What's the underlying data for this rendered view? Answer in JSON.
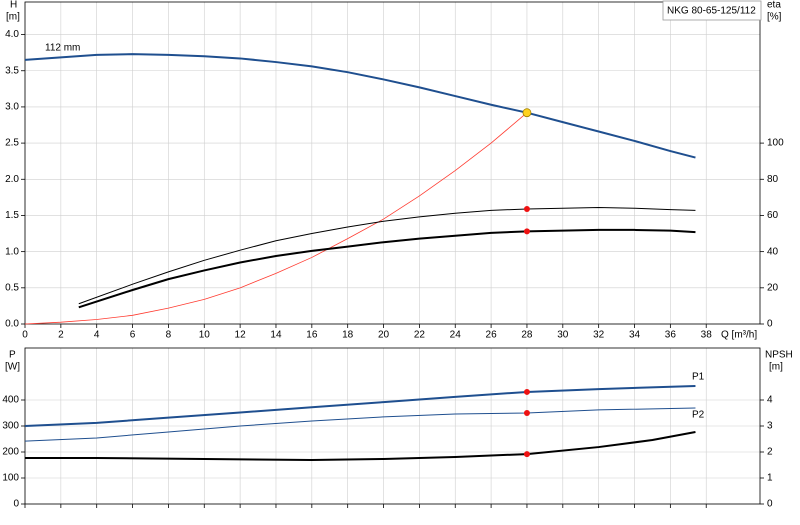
{
  "chart_data": [
    {
      "type": "line",
      "title": "NKG 80-65-125/112",
      "y_label": "H",
      "y_unit": "[m]",
      "y2_label": "eta",
      "y2_unit": "[%]",
      "x_label": "Q [m³/h]",
      "xlim": [
        0,
        41
      ],
      "ylim": [
        0,
        4.45
      ],
      "y2lim": [
        0,
        178
      ],
      "xticks": [
        0,
        2,
        4,
        6,
        8,
        10,
        12,
        14,
        16,
        18,
        20,
        22,
        24,
        26,
        28,
        30,
        32,
        34,
        36,
        38
      ],
      "yticks": [
        {
          "value": 0,
          "label": "0.0"
        },
        0.5,
        {
          "value": 1,
          "label": "1.0"
        },
        1.5,
        {
          "value": 2,
          "label": "2.0"
        },
        2.5,
        {
          "value": 3,
          "label": "3.0"
        },
        3.5,
        {
          "value": 4,
          "label": "4.0"
        }
      ],
      "y2ticks": [
        0,
        20,
        40,
        60,
        80,
        100
      ],
      "grid": true,
      "show_xtick_labels": true,
      "series": [
        {
          "name": "112 mm",
          "color": "#1f4f8f",
          "width": 2,
          "axis": "y",
          "x": [
            0,
            4,
            6,
            8,
            10,
            12,
            14,
            16,
            18,
            20,
            22,
            24,
            26,
            28,
            30,
            32,
            34,
            36,
            37.4
          ],
          "values": [
            3.65,
            3.72,
            3.73,
            3.72,
            3.7,
            3.67,
            3.62,
            3.56,
            3.48,
            3.38,
            3.27,
            3.15,
            3.03,
            2.92,
            2.79,
            2.66,
            2.53,
            2.39,
            2.3
          ]
        },
        {
          "color": "#ff3b30",
          "width": 0.8,
          "axis": "y2",
          "x": [
            0,
            2,
            4,
            6,
            8,
            10,
            12,
            14,
            16,
            18,
            20,
            22,
            24,
            26,
            28
          ],
          "values": [
            0,
            1,
            2.5,
            4.8,
            8.8,
            13.6,
            20,
            28,
            36.8,
            47.2,
            58,
            70.8,
            84.8,
            100,
            116.8
          ]
        },
        {
          "color": "#000000",
          "width": 1,
          "axis": "y2",
          "x": [
            3,
            6,
            8,
            10,
            12,
            14,
            16,
            18,
            20,
            22,
            24,
            26,
            28,
            30,
            32,
            34,
            36,
            37.4
          ],
          "values": [
            11.2,
            22,
            28.8,
            35.2,
            40.8,
            46,
            50,
            53.6,
            56.8,
            59.2,
            61.2,
            62.8,
            63.6,
            64,
            64.4,
            64,
            63.2,
            62.8
          ]
        },
        {
          "color": "#000000",
          "width": 2,
          "axis": "y2",
          "x": [
            3,
            6,
            8,
            10,
            12,
            14,
            16,
            18,
            20,
            22,
            24,
            26,
            28,
            30,
            32,
            34,
            36,
            37.4
          ],
          "values": [
            9.2,
            18.8,
            24.8,
            29.6,
            34,
            37.6,
            40.4,
            42.8,
            45.2,
            47.2,
            48.8,
            50.4,
            51.2,
            51.6,
            52,
            52,
            51.6,
            50.8
          ]
        }
      ],
      "duty_points": [
        {
          "x": 28,
          "y": 2.92,
          "axis": "y",
          "color": "#ffd21f"
        },
        {
          "x": 28,
          "y": 63.6,
          "axis": "y2",
          "color": "#ee1111"
        },
        {
          "x": 28,
          "y": 51.2,
          "axis": "y2",
          "color": "#ee1111"
        }
      ]
    },
    {
      "type": "line",
      "y_label": "P",
      "y_unit": "[W]",
      "y2_label": "NPSH",
      "y2_unit": "[m]",
      "xlim": [
        0,
        41
      ],
      "ylim": [
        0,
        600
      ],
      "y2lim": [
        0,
        6
      ],
      "xticks": [
        0,
        2,
        4,
        6,
        8,
        10,
        12,
        14,
        16,
        18,
        20,
        22,
        24,
        26,
        28,
        30,
        32,
        34,
        36,
        38
      ],
      "yticks": [
        0,
        100,
        200,
        300,
        400
      ],
      "y2ticks": [
        0,
        1,
        2,
        3,
        4
      ],
      "grid": true,
      "show_xtick_labels": false,
      "series": [
        {
          "name": "P1",
          "color": "#1f4f8f",
          "width": 2,
          "axis": "y",
          "x": [
            0,
            4,
            8,
            12,
            16,
            20,
            24,
            28,
            32,
            37.4
          ],
          "values": [
            300,
            312,
            332,
            352,
            372,
            392,
            412,
            431,
            442,
            454
          ]
        },
        {
          "name": "P2",
          "color": "#1f4f8f",
          "width": 1,
          "axis": "y",
          "x": [
            0,
            4,
            8,
            12,
            16,
            20,
            24,
            28,
            32,
            37.4
          ],
          "values": [
            242,
            254,
            277,
            300,
            319,
            335,
            346,
            350,
            362,
            369
          ]
        },
        {
          "color": "#000000",
          "width": 2,
          "axis": "y2",
          "x": [
            0,
            4,
            10,
            16,
            20,
            24,
            28,
            32,
            35,
            37.4
          ],
          "values": [
            1.77,
            1.77,
            1.73,
            1.69,
            1.73,
            1.81,
            1.92,
            2.19,
            2.46,
            2.77
          ]
        }
      ],
      "duty_points": [
        {
          "x": 28,
          "y": 431,
          "axis": "y",
          "color": "#ee1111"
        },
        {
          "x": 28,
          "y": 350,
          "axis": "y",
          "color": "#ee1111"
        },
        {
          "x": 28,
          "y": 1.92,
          "axis": "y2",
          "color": "#ee1111"
        }
      ]
    }
  ]
}
